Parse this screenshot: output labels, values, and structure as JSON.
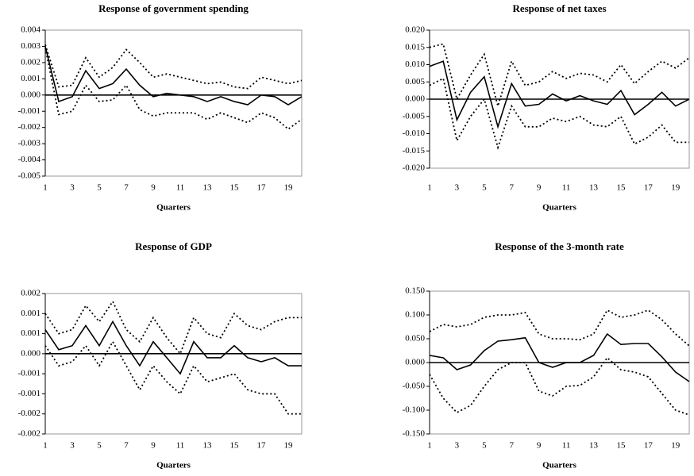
{
  "chart_data": [
    {
      "type": "line",
      "title": "Response of government spending",
      "xlabel": "Quarters",
      "x": [
        1,
        2,
        3,
        4,
        5,
        6,
        7,
        8,
        9,
        10,
        11,
        12,
        13,
        14,
        15,
        16,
        17,
        18,
        19,
        20
      ],
      "xlim": [
        1,
        20
      ],
      "xticks": [
        1,
        3,
        5,
        7,
        9,
        11,
        13,
        15,
        17,
        19
      ],
      "ylim": [
        -0.005,
        0.004
      ],
      "yticks": [
        0.004,
        0.003,
        0.002,
        0.001,
        {
          "value": 0,
          "label": "0.000"
        },
        -0.001,
        -0.002,
        -0.003,
        -0.004,
        -0.005
      ],
      "series": [
        {
          "color": "#000000",
          "line_style": "solid",
          "values": [
            0.003,
            -0.0004,
            -0.0001,
            0.0015,
            0.0004,
            0.0007,
            0.0016,
            0.0006,
            -0.0001,
            0.0001,
            0.0,
            -0.0001,
            -0.0004,
            -0.0001,
            -0.0004,
            -0.0006,
            0.0,
            -0.0001,
            -0.0006,
            -0.0001
          ]
        },
        {
          "color": "#000000",
          "line_style": "dotted",
          "values": [
            0.0031,
            0.0005,
            0.0006,
            0.0023,
            0.0011,
            0.0017,
            0.0028,
            0.002,
            0.0011,
            0.0013,
            0.0011,
            0.0009,
            0.0007,
            0.0008,
            0.0005,
            0.0004,
            0.0011,
            0.0009,
            0.0007,
            0.0009
          ]
        },
        {
          "color": "#000000",
          "line_style": "dotted",
          "values": [
            0.0029,
            -0.0012,
            -0.001,
            0.0006,
            -0.0004,
            -0.0003,
            0.0006,
            -0.0009,
            -0.0013,
            -0.0011,
            -0.0011,
            -0.0011,
            -0.0015,
            -0.0011,
            -0.0014,
            -0.0017,
            -0.0011,
            -0.0014,
            -0.0021,
            -0.0015
          ]
        }
      ]
    },
    {
      "type": "line",
      "title": "Response of net taxes",
      "xlabel": "Quarters",
      "x": [
        1,
        2,
        3,
        4,
        5,
        6,
        7,
        8,
        9,
        10,
        11,
        12,
        13,
        14,
        15,
        16,
        17,
        18,
        19,
        20
      ],
      "xlim": [
        1,
        20
      ],
      "xticks": [
        1,
        3,
        5,
        7,
        9,
        11,
        13,
        15,
        17,
        19
      ],
      "ylim": [
        -0.02,
        0.02
      ],
      "yticks": [
        {
          "value": 0.02,
          "label": "0.020"
        },
        0.015,
        {
          "value": 0.01,
          "label": "0.010"
        },
        0.005,
        {
          "value": 0,
          "label": "0.000"
        },
        -0.005,
        {
          "value": -0.01,
          "label": "-0.010"
        },
        -0.015,
        {
          "value": -0.02,
          "label": "-0.020"
        }
      ],
      "series": [
        {
          "color": "#000000",
          "line_style": "solid",
          "values": [
            0.0095,
            0.011,
            -0.006,
            0.002,
            0.0065,
            -0.008,
            0.0045,
            -0.002,
            -0.0015,
            0.0015,
            -0.0005,
            0.001,
            -0.0005,
            -0.0015,
            0.0025,
            -0.0045,
            -0.0015,
            0.002,
            -0.002,
            0.0
          ]
        },
        {
          "color": "#000000",
          "line_style": "dotted",
          "values": [
            0.015,
            0.016,
            0.0,
            0.007,
            0.013,
            -0.002,
            0.011,
            0.004,
            0.005,
            0.008,
            0.006,
            0.0075,
            0.007,
            0.005,
            0.01,
            0.0045,
            0.008,
            0.011,
            0.009,
            0.012
          ]
        },
        {
          "color": "#000000",
          "line_style": "dotted",
          "values": [
            0.004,
            0.006,
            -0.012,
            -0.005,
            0.0,
            -0.014,
            -0.002,
            -0.008,
            -0.008,
            -0.0055,
            -0.0065,
            -0.005,
            -0.0075,
            -0.008,
            -0.005,
            -0.013,
            -0.011,
            -0.0075,
            -0.0125,
            -0.0125
          ]
        }
      ]
    },
    {
      "type": "line",
      "title": "Response of GDP",
      "xlabel": "Quarters",
      "x": [
        1,
        2,
        3,
        4,
        5,
        6,
        7,
        8,
        9,
        10,
        11,
        12,
        13,
        14,
        15,
        16,
        17,
        18,
        19,
        20
      ],
      "xlim": [
        1,
        20
      ],
      "xticks": [
        1,
        3,
        5,
        7,
        9,
        11,
        13,
        15,
        17,
        19
      ],
      "ylim": [
        -0.002,
        0.0015
      ],
      "yticks": [
        {
          "value": 0.0015,
          "label": "0.002"
        },
        0.001,
        {
          "value": 0.0005,
          "label": "0.001"
        },
        {
          "value": 0,
          "label": "0.000"
        },
        {
          "value": -0.0005,
          "label": "-0.001"
        },
        -0.001,
        {
          "value": -0.0015,
          "label": "-0.002"
        },
        -0.002
      ],
      "series": [
        {
          "color": "#000000",
          "line_style": "solid",
          "values": [
            0.0006,
            0.0001,
            0.0002,
            0.0007,
            0.0002,
            0.0008,
            0.0002,
            -0.0003,
            0.0003,
            -0.0001,
            -0.0005,
            0.0003,
            -0.0001,
            -0.0001,
            0.0002,
            -0.0001,
            -0.0002,
            -0.0001,
            -0.0003,
            -0.0003
          ]
        },
        {
          "color": "#000000",
          "line_style": "dotted",
          "values": [
            0.001,
            0.0005,
            0.0006,
            0.0012,
            0.0008,
            0.0013,
            0.0006,
            0.0003,
            0.0009,
            0.0004,
            0.0,
            0.0009,
            0.0005,
            0.0004,
            0.001,
            0.0007,
            0.0006,
            0.0008,
            0.0009,
            0.0009
          ]
        },
        {
          "color": "#000000",
          "line_style": "dotted",
          "values": [
            0.0002,
            -0.0003,
            -0.0002,
            0.0002,
            -0.0003,
            0.0003,
            -0.0003,
            -0.0009,
            -0.0003,
            -0.0007,
            -0.001,
            -0.0003,
            -0.0007,
            -0.0006,
            -0.0005,
            -0.0009,
            -0.001,
            -0.001,
            -0.0015,
            -0.0015
          ]
        }
      ]
    },
    {
      "type": "line",
      "title": "Response of the 3-month rate",
      "xlabel": "Quarters",
      "x": [
        1,
        2,
        3,
        4,
        5,
        6,
        7,
        8,
        9,
        10,
        11,
        12,
        13,
        14,
        15,
        16,
        17,
        18,
        19,
        20
      ],
      "xlim": [
        1,
        20
      ],
      "xticks": [
        1,
        3,
        5,
        7,
        9,
        11,
        13,
        15,
        17,
        19
      ],
      "ylim": [
        -0.15,
        0.15
      ],
      "yticks": [
        {
          "value": 0.15,
          "label": "0.150"
        },
        {
          "value": 0.1,
          "label": "0.100"
        },
        {
          "value": 0.05,
          "label": "0.050"
        },
        {
          "value": 0,
          "label": "0.000"
        },
        {
          "value": -0.05,
          "label": "-0.050"
        },
        {
          "value": -0.1,
          "label": "-0.100"
        },
        {
          "value": -0.15,
          "label": "-0.150"
        }
      ],
      "series": [
        {
          "color": "#000000",
          "line_style": "solid",
          "values": [
            0.015,
            0.01,
            -0.015,
            -0.005,
            0.025,
            0.045,
            0.048,
            0.052,
            0.0,
            -0.01,
            0.0,
            0.0,
            0.015,
            0.06,
            0.038,
            0.04,
            0.04,
            0.012,
            -0.02,
            -0.04
          ]
        },
        {
          "color": "#000000",
          "line_style": "dotted",
          "values": [
            0.065,
            0.08,
            0.075,
            0.08,
            0.095,
            0.1,
            0.1,
            0.105,
            0.06,
            0.05,
            0.05,
            0.048,
            0.06,
            0.11,
            0.095,
            0.1,
            0.11,
            0.09,
            0.06,
            0.035
          ]
        },
        {
          "color": "#000000",
          "line_style": "dotted",
          "values": [
            -0.025,
            -0.075,
            -0.105,
            -0.09,
            -0.05,
            -0.015,
            0.0,
            0.0,
            -0.06,
            -0.07,
            -0.05,
            -0.048,
            -0.03,
            0.01,
            -0.015,
            -0.02,
            -0.03,
            -0.065,
            -0.1,
            -0.11
          ]
        }
      ]
    }
  ]
}
